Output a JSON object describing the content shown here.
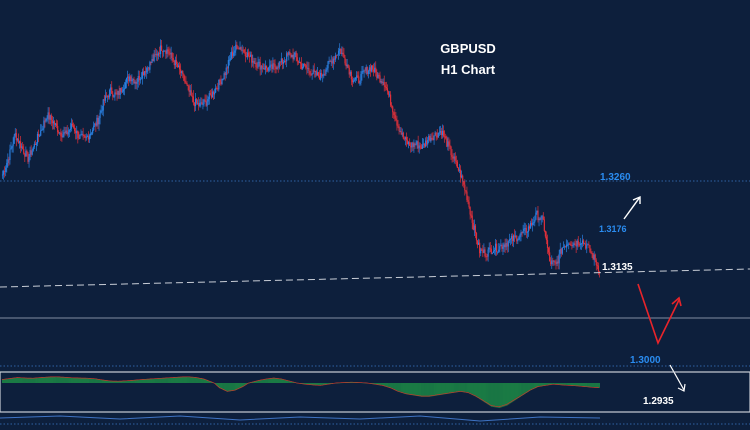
{
  "chart_data": {
    "type": "candlestick",
    "title": "GBPUSD",
    "subtitle": "H1 Chart",
    "grid": false,
    "legend": "none",
    "colors": {
      "background": "#0d1f3c",
      "bull": "#2a7fe0",
      "bear": "#e0303a",
      "histogram": "#22b04a",
      "level_label": "#2a8cf0",
      "arrow_white": "#ffffff",
      "arrow_red": "#e8242a",
      "dashed_line": "#c8cdd6"
    },
    "price_range": [
      1.2935,
      1.3375
    ],
    "price_path": [
      1.319,
      1.3215,
      1.3245,
      1.3228,
      1.3212,
      1.323,
      1.325,
      1.3272,
      1.3262,
      1.3248,
      1.3245,
      1.3258,
      1.3242,
      1.3238,
      1.325,
      1.3265,
      1.3292,
      1.3305,
      1.3298,
      1.3312,
      1.3325,
      1.3318,
      1.333,
      1.334,
      1.3352,
      1.3365,
      1.336,
      1.3345,
      1.333,
      1.331,
      1.329,
      1.3285,
      1.329,
      1.3302,
      1.3315,
      1.333,
      1.3355,
      1.3368,
      1.336,
      1.335,
      1.3342,
      1.3338,
      1.3335,
      1.334,
      1.3345,
      1.3355,
      1.3352,
      1.334,
      1.3335,
      1.3328,
      1.3325,
      1.3338,
      1.335,
      1.3362,
      1.3345,
      1.3322,
      1.332,
      1.3332,
      1.3338,
      1.3325,
      1.3318,
      1.329,
      1.3262,
      1.324,
      1.323,
      1.3232,
      1.3228,
      1.324,
      1.3245,
      1.325,
      1.323,
      1.321,
      1.319,
      1.316,
      1.312,
      1.3085,
      1.3082,
      1.3088,
      1.309,
      1.3095,
      1.31,
      1.3105,
      1.311,
      1.312,
      1.3135,
      1.3125,
      1.307,
      1.3065,
      1.309,
      1.3098,
      1.3095,
      1.31,
      1.309,
      1.3075,
      1.3055
    ],
    "levels": [
      {
        "price": 1.326,
        "label": "1.3260",
        "style": "dotted",
        "label_color": "#2a8cf0"
      },
      {
        "price": 1.3135,
        "label": "1.3135",
        "style": "dashed",
        "label_color": "#ffffff"
      },
      {
        "price": 1.3,
        "label": "1.3000",
        "style": "dotted",
        "label_color": "#2a8cf0"
      }
    ],
    "targets": [
      {
        "label": "1.3176",
        "color": "#2a8cf0",
        "arrow": "white-up"
      },
      {
        "label": "1.2935",
        "color": "#ffffff",
        "arrow": "white-down"
      }
    ],
    "oscillator": {
      "type": "histogram",
      "values": [
        0.35,
        0.45,
        0.55,
        0.5,
        0.48,
        0.55,
        0.6,
        0.62,
        0.58,
        0.52,
        0.5,
        0.48,
        0.42,
        0.3,
        0.2,
        0.18,
        0.22,
        0.28,
        0.35,
        0.4,
        0.45,
        0.5,
        0.55,
        0.6,
        0.62,
        0.55,
        0.4,
        0.1,
        -0.2,
        -0.35,
        -0.3,
        -0.15,
        0.05,
        0.25,
        0.4,
        0.5,
        0.4,
        0.2,
        0.0,
        -0.05,
        -0.08,
        -0.1,
        -0.05,
        0.0,
        0.05,
        0.08,
        0.05,
        0.0,
        -0.05,
        -0.1,
        -0.2,
        -0.35,
        -0.45,
        -0.5,
        -0.55,
        -0.55,
        -0.5,
        -0.45,
        -0.4,
        -0.35,
        -0.4,
        -0.55,
        -0.75,
        -0.95,
        -1.0,
        -0.9,
        -0.7,
        -0.5,
        -0.3,
        -0.15,
        -0.1,
        -0.05,
        -0.08,
        -0.1,
        -0.12,
        -0.15,
        -0.18,
        -0.2
      ]
    }
  }
}
